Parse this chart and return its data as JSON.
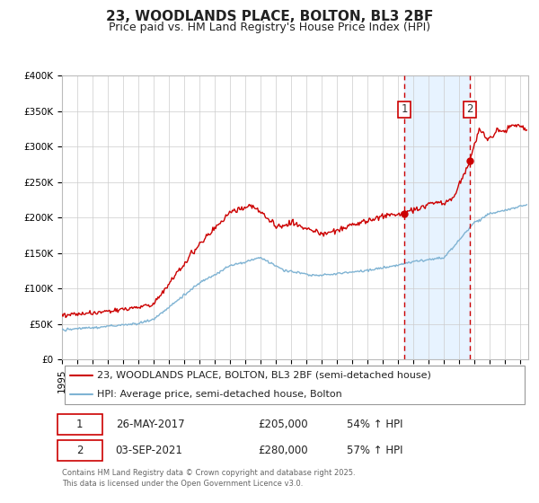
{
  "title": "23, WOODLANDS PLACE, BOLTON, BL3 2BF",
  "subtitle": "Price paid vs. HM Land Registry's House Price Index (HPI)",
  "ylim": [
    0,
    400000
  ],
  "yticks": [
    0,
    50000,
    100000,
    150000,
    200000,
    250000,
    300000,
    350000,
    400000
  ],
  "ytick_labels": [
    "£0",
    "£50K",
    "£100K",
    "£150K",
    "£200K",
    "£250K",
    "£300K",
    "£350K",
    "£400K"
  ],
  "xlim_start": 1995.0,
  "xlim_end": 2025.5,
  "line1_color": "#cc0000",
  "line2_color": "#7fb3d3",
  "vline1_x": 2017.4,
  "vline2_x": 2021.67,
  "vline_color": "#cc0000",
  "marker1_x": 2017.4,
  "marker1_y": 205000,
  "marker2_x": 2021.67,
  "marker2_y": 280000,
  "annotation1_label": "1",
  "annotation2_label": "2",
  "legend_label1": "23, WOODLANDS PLACE, BOLTON, BL3 2BF (semi-detached house)",
  "legend_label2": "HPI: Average price, semi-detached house, Bolton",
  "table_row1": [
    "1",
    "26-MAY-2017",
    "£205,000",
    "54% ↑ HPI"
  ],
  "table_row2": [
    "2",
    "03-SEP-2021",
    "£280,000",
    "57% ↑ HPI"
  ],
  "footer": "Contains HM Land Registry data © Crown copyright and database right 2025.\nThis data is licensed under the Open Government Licence v3.0.",
  "bg_shade_color": "#ddeeff",
  "title_fontsize": 11,
  "subtitle_fontsize": 9,
  "tick_fontsize": 7.5,
  "legend_fontsize": 8,
  "table_fontsize": 8.5,
  "footer_fontsize": 6
}
